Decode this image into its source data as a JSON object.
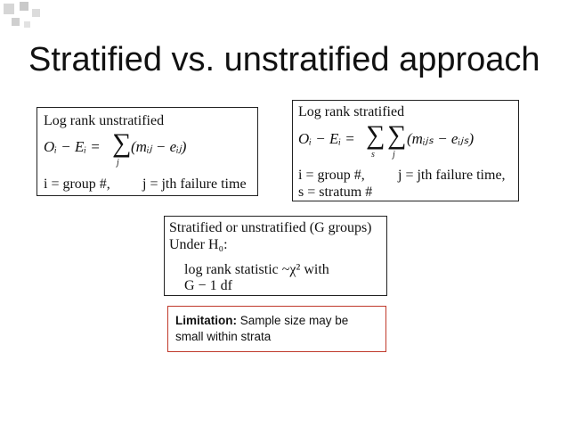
{
  "slide_title": "Stratified vs. unstratified approach",
  "box_unstratified": {
    "heading": "Log rank unstratified",
    "lhs": "Oᵢ − Eᵢ =",
    "sum_index": "j",
    "summand": "(mᵢⱼ − eᵢⱼ)",
    "def_i": "i = group #,",
    "def_j": "j = jth failure time"
  },
  "box_stratified": {
    "heading": "Log rank stratified",
    "lhs": "Oᵢ − Eᵢ =",
    "sum_index_s": "s",
    "sum_index_j": "j",
    "summand": "(mᵢⱼₛ − eᵢⱼₛ)",
    "def_i": "i = group #,",
    "def_j": "j = jth failure time,",
    "def_s": "s = stratum #"
  },
  "box_null": {
    "line1": "Stratified or unstratified (G groups)",
    "line2": "Under H₀:",
    "line3": "log rank statistic ~χ² with",
    "line4": "G − 1 df"
  },
  "limitation": {
    "label": "Limitation:",
    "text": " Sample size may be small within strata"
  },
  "colors": {
    "decoration": "#c9c9c9",
    "limitation_border": "#c0392b"
  }
}
